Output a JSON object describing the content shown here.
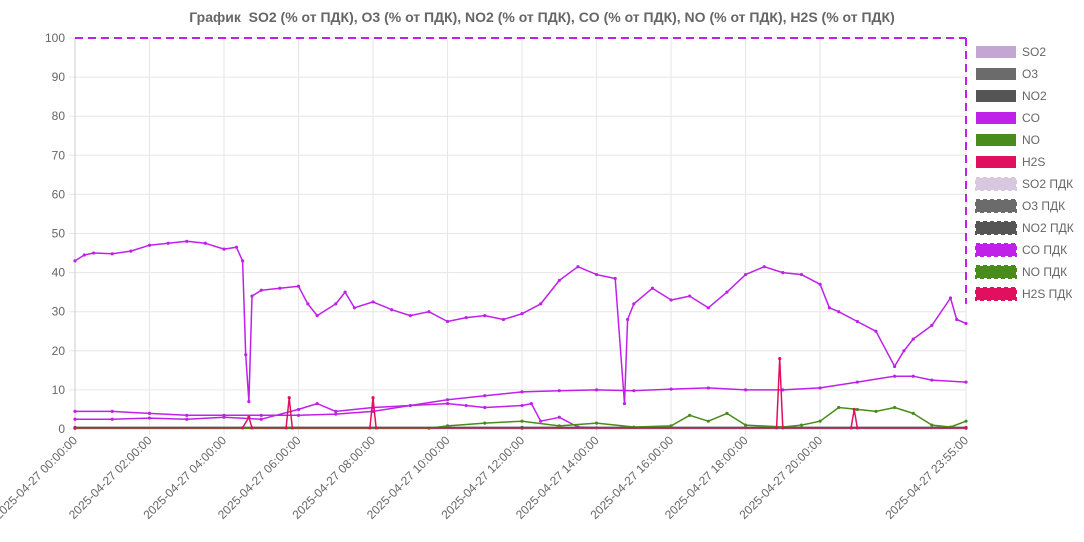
{
  "chart_data": {
    "type": "line",
    "title": "График  SO2 (% от ПДК), O3 (% от ПДК), NO2 (% от ПДК), CO (% от ПДК), NO (% от ПДК), H2S (% от ПДК)",
    "ylim": [
      0,
      100
    ],
    "yticks": [
      0,
      10,
      20,
      30,
      40,
      50,
      60,
      70,
      80,
      90,
      100
    ],
    "grid": true,
    "legend_position": "right",
    "x_start": "2025-04-27 00:00:00",
    "x_end": "2025-04-27 23:55:00",
    "x_ticks": [
      "2025-04-27 00:00:00",
      "2025-04-27 02:00:00",
      "2025-04-27 04:00:00",
      "2025-04-27 06:00:00",
      "2025-04-27 08:00:00",
      "2025-04-27 10:00:00",
      "2025-04-27 12:00:00",
      "2025-04-27 14:00:00",
      "2025-04-27 16:00:00",
      "2025-04-27 18:00:00",
      "2025-04-27 20:00:00",
      "2025-04-27 23:55:00"
    ],
    "series": [
      {
        "name": "SO2",
        "color": "#c3a6d1",
        "points": [
          [
            "00:00",
            0.3
          ],
          [
            "06:00",
            0.3
          ],
          [
            "12:00",
            0.3
          ],
          [
            "18:00",
            0.3
          ],
          [
            "23:55",
            0.3
          ]
        ]
      },
      {
        "name": "O3",
        "color": "#6b6b6b",
        "points": [
          [
            "00:00",
            0.2
          ],
          [
            "12:00",
            0.2
          ],
          [
            "23:55",
            0.2
          ]
        ]
      },
      {
        "name": "NO2",
        "color": "#555555",
        "points": [
          [
            "00:00",
            0.4
          ],
          [
            "12:00",
            0.4
          ],
          [
            "23:55",
            0.4
          ]
        ]
      },
      {
        "name": "CO",
        "color": "#c021e8",
        "points": [
          [
            "00:00",
            43.0
          ],
          [
            "00:15",
            44.5
          ],
          [
            "00:30",
            45.0
          ],
          [
            "01:00",
            44.8
          ],
          [
            "01:30",
            45.5
          ],
          [
            "02:00",
            47.0
          ],
          [
            "02:30",
            47.5
          ],
          [
            "03:00",
            48.0
          ],
          [
            "03:30",
            47.5
          ],
          [
            "04:00",
            46.0
          ],
          [
            "04:20",
            46.5
          ],
          [
            "04:30",
            43.0
          ],
          [
            "04:35",
            19.0
          ],
          [
            "04:40",
            7.0
          ],
          [
            "04:45",
            34.0
          ],
          [
            "05:00",
            35.5
          ],
          [
            "05:30",
            36.0
          ],
          [
            "06:00",
            36.5
          ],
          [
            "06:15",
            32.0
          ],
          [
            "06:30",
            29.0
          ],
          [
            "07:00",
            32.0
          ],
          [
            "07:15",
            35.0
          ],
          [
            "07:30",
            31.0
          ],
          [
            "08:00",
            32.5
          ],
          [
            "08:30",
            30.5
          ],
          [
            "09:00",
            29.0
          ],
          [
            "09:30",
            30.0
          ],
          [
            "10:00",
            27.5
          ],
          [
            "10:30",
            28.5
          ],
          [
            "11:00",
            29.0
          ],
          [
            "11:30",
            28.0
          ],
          [
            "12:00",
            29.5
          ],
          [
            "12:30",
            32.0
          ],
          [
            "13:00",
            38.0
          ],
          [
            "13:30",
            41.5
          ],
          [
            "14:00",
            39.5
          ],
          [
            "14:30",
            38.5
          ],
          [
            "14:45",
            6.5
          ],
          [
            "14:50",
            28.0
          ],
          [
            "15:00",
            32.0
          ],
          [
            "15:30",
            36.0
          ],
          [
            "16:00",
            33.0
          ],
          [
            "16:30",
            34.0
          ],
          [
            "17:00",
            31.0
          ],
          [
            "17:30",
            35.0
          ],
          [
            "18:00",
            39.5
          ],
          [
            "18:30",
            41.5
          ],
          [
            "19:00",
            40.0
          ],
          [
            "19:30",
            39.5
          ],
          [
            "20:00",
            37.0
          ],
          [
            "20:15",
            31.0
          ],
          [
            "20:30",
            30.0
          ],
          [
            "21:00",
            27.5
          ],
          [
            "21:30",
            25.0
          ],
          [
            "22:00",
            16.0
          ],
          [
            "22:15",
            20.0
          ],
          [
            "22:30",
            23.0
          ],
          [
            "23:00",
            26.5
          ],
          [
            "23:30",
            33.5
          ],
          [
            "23:40",
            28.0
          ],
          [
            "23:55",
            27.0
          ]
        ]
      },
      {
        "name": "NO",
        "color": "#4a8c1c",
        "points": [
          [
            "00:00",
            0.2
          ],
          [
            "09:30",
            0.2
          ],
          [
            "10:00",
            0.8
          ],
          [
            "11:00",
            1.5
          ],
          [
            "12:00",
            2.0
          ],
          [
            "13:00",
            0.8
          ],
          [
            "14:00",
            1.5
          ],
          [
            "15:00",
            0.5
          ],
          [
            "16:00",
            0.8
          ],
          [
            "16:30",
            3.5
          ],
          [
            "17:00",
            2.0
          ],
          [
            "17:30",
            4.0
          ],
          [
            "18:00",
            1.0
          ],
          [
            "19:00",
            0.5
          ],
          [
            "19:30",
            1.0
          ],
          [
            "20:00",
            2.0
          ],
          [
            "20:30",
            5.5
          ],
          [
            "21:00",
            5.0
          ],
          [
            "21:30",
            4.5
          ],
          [
            "22:00",
            5.5
          ],
          [
            "22:30",
            4.0
          ],
          [
            "23:00",
            1.0
          ],
          [
            "23:30",
            0.5
          ],
          [
            "23:55",
            2.0
          ]
        ]
      },
      {
        "name": "H2S",
        "color": "#e0105f",
        "points": [
          [
            "00:00",
            0.3
          ],
          [
            "04:30",
            0.3
          ],
          [
            "04:40",
            3.0
          ],
          [
            "04:45",
            0.3
          ],
          [
            "05:40",
            0.3
          ],
          [
            "05:45",
            8.0
          ],
          [
            "05:50",
            0.3
          ],
          [
            "07:55",
            0.3
          ],
          [
            "08:00",
            8.0
          ],
          [
            "08:05",
            0.3
          ],
          [
            "18:50",
            0.3
          ],
          [
            "18:55",
            18.0
          ],
          [
            "19:00",
            0.3
          ],
          [
            "20:50",
            0.3
          ],
          [
            "20:55",
            5.0
          ],
          [
            "21:00",
            0.3
          ],
          [
            "23:55",
            0.3
          ]
        ]
      },
      {
        "name": "SO2 ПДК",
        "color": "#d8c8df",
        "dashed": true,
        "points": []
      },
      {
        "name": "O3 ПДК",
        "color": "#6b6b6b",
        "dashed": true,
        "points": []
      },
      {
        "name": "NO2 ПДК",
        "color": "#555555",
        "dashed": true,
        "points": []
      },
      {
        "name": "CO ПДК",
        "color": "#c021e8",
        "dashed": true,
        "points": [
          [
            "00:00",
            100
          ],
          [
            "23:55",
            100
          ]
        ]
      },
      {
        "name": "NO ПДК",
        "color": "#4a8c1c",
        "dashed": true,
        "points": []
      },
      {
        "name": "H2S ПДК",
        "color": "#e0105f",
        "dashed": true,
        "points": []
      }
    ],
    "extra_trace": {
      "name": "",
      "color": "#c021e8",
      "points": [
        [
          "00:00",
          4.5
        ],
        [
          "01:00",
          4.5
        ],
        [
          "02:00",
          4.0
        ],
        [
          "03:00",
          3.5
        ],
        [
          "04:00",
          3.5
        ],
        [
          "05:00",
          3.5
        ],
        [
          "06:00",
          3.5
        ],
        [
          "07:00",
          3.8
        ],
        [
          "08:00",
          4.5
        ],
        [
          "09:00",
          6.0
        ],
        [
          "10:00",
          7.5
        ],
        [
          "11:00",
          8.5
        ],
        [
          "12:00",
          9.5
        ],
        [
          "13:00",
          9.8
        ],
        [
          "14:00",
          10.0
        ],
        [
          "15:00",
          9.8
        ],
        [
          "16:00",
          10.2
        ],
        [
          "17:00",
          10.5
        ],
        [
          "18:00",
          10.0
        ],
        [
          "19:00",
          10.0
        ],
        [
          "20:00",
          10.5
        ],
        [
          "21:00",
          12.0
        ],
        [
          "22:00",
          13.5
        ],
        [
          "22:30",
          13.5
        ],
        [
          "23:00",
          12.5
        ],
        [
          "23:55",
          12.0
        ]
      ]
    },
    "extra_trace2": {
      "name": "",
      "color": "#c021e8",
      "points": [
        [
          "00:00",
          2.5
        ],
        [
          "01:00",
          2.5
        ],
        [
          "02:00",
          2.8
        ],
        [
          "03:00",
          2.5
        ],
        [
          "04:00",
          3.0
        ],
        [
          "05:00",
          2.5
        ],
        [
          "06:00",
          5.0
        ],
        [
          "06:30",
          6.5
        ],
        [
          "07:00",
          4.5
        ],
        [
          "08:00",
          5.5
        ],
        [
          "09:00",
          6.0
        ],
        [
          "10:00",
          6.5
        ],
        [
          "10:30",
          6.0
        ],
        [
          "11:00",
          5.5
        ],
        [
          "12:00",
          6.0
        ],
        [
          "12:15",
          6.5
        ],
        [
          "12:30",
          2.0
        ],
        [
          "13:00",
          3.0
        ],
        [
          "13:30",
          0.5
        ],
        [
          "14:00",
          0.3
        ],
        [
          "23:55",
          0.3
        ]
      ]
    }
  }
}
